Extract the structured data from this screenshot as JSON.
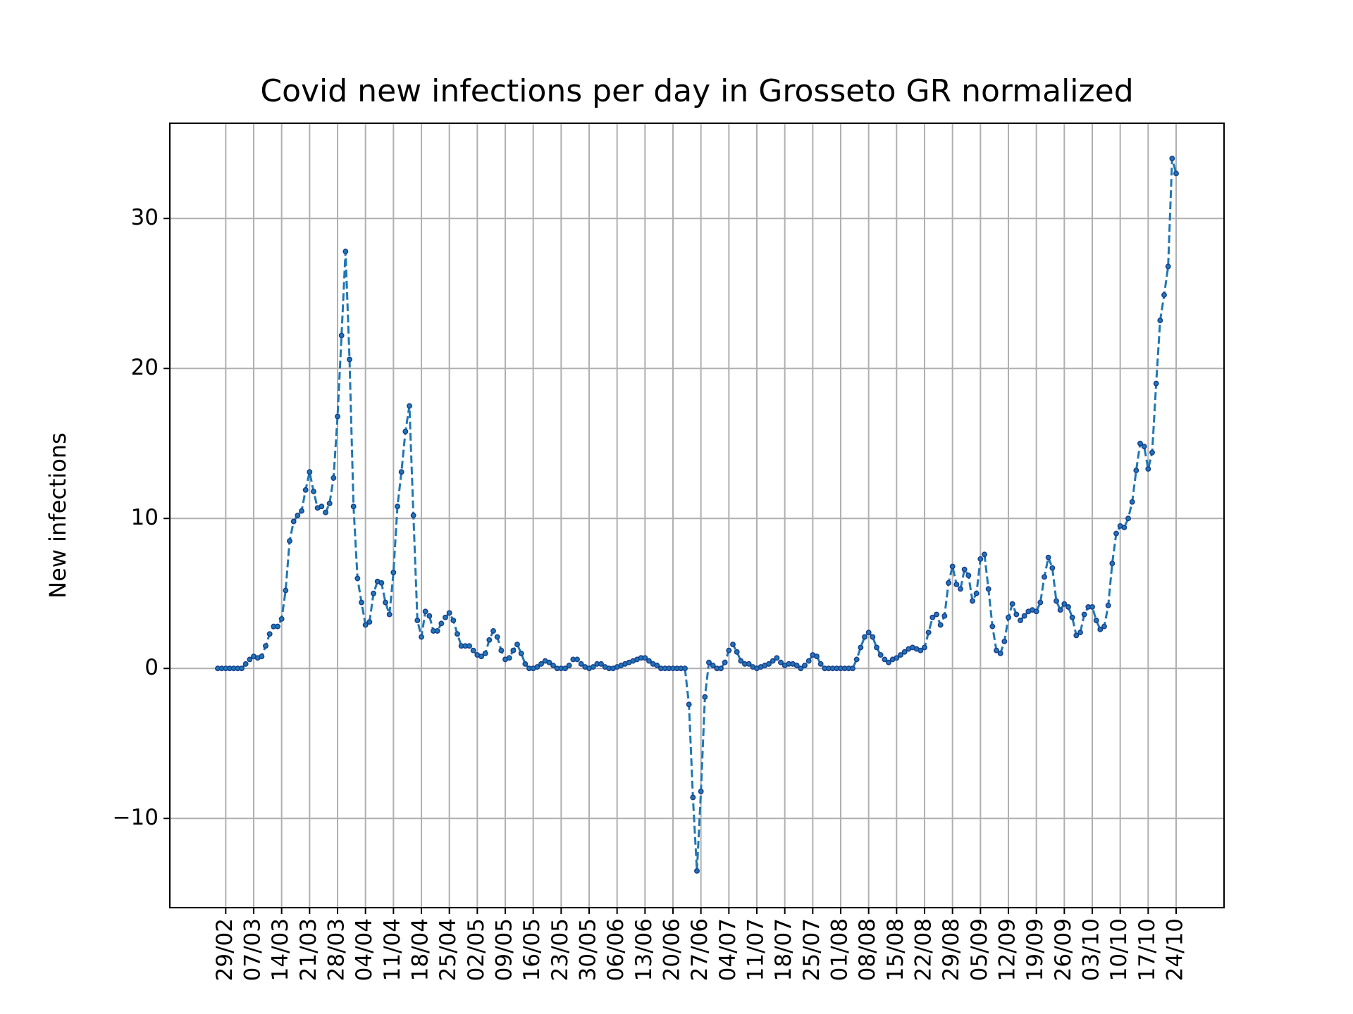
{
  "chart_data": {
    "type": "line",
    "title": "Covid new infections per day in Grosseto GR normalized",
    "ylabel": "New infections",
    "categories": [
      null,
      null,
      "29/02",
      null,
      null,
      null,
      null,
      null,
      null,
      "07/03",
      null,
      null,
      null,
      null,
      null,
      null,
      "14/03",
      null,
      null,
      null,
      null,
      null,
      null,
      "21/03",
      null,
      null,
      null,
      null,
      null,
      null,
      "28/03",
      null,
      null,
      null,
      null,
      null,
      null,
      "04/04",
      null,
      null,
      null,
      null,
      null,
      null,
      "11/04",
      null,
      null,
      null,
      null,
      null,
      null,
      "18/04",
      null,
      null,
      null,
      null,
      null,
      null,
      "25/04",
      null,
      null,
      null,
      null,
      null,
      null,
      "02/05",
      null,
      null,
      null,
      null,
      null,
      null,
      "09/05",
      null,
      null,
      null,
      null,
      null,
      null,
      "16/05",
      null,
      null,
      null,
      null,
      null,
      null,
      "23/05",
      null,
      null,
      null,
      null,
      null,
      null,
      "30/05",
      null,
      null,
      null,
      null,
      null,
      null,
      "06/06",
      null,
      null,
      null,
      null,
      null,
      null,
      "13/06",
      null,
      null,
      null,
      null,
      null,
      null,
      "20/06",
      null,
      null,
      null,
      null,
      null,
      null,
      "27/06",
      null,
      null,
      null,
      null,
      null,
      null,
      "04/07",
      null,
      null,
      null,
      null,
      null,
      null,
      "11/07",
      null,
      null,
      null,
      null,
      null,
      null,
      "18/07",
      null,
      null,
      null,
      null,
      null,
      null,
      "25/07",
      null,
      null,
      null,
      null,
      null,
      null,
      "01/08",
      null,
      null,
      null,
      null,
      null,
      null,
      "08/08",
      null,
      null,
      null,
      null,
      null,
      null,
      "15/08",
      null,
      null,
      null,
      null,
      null,
      null,
      "22/08",
      null,
      null,
      null,
      null,
      null,
      null,
      "29/08",
      null,
      null,
      null,
      null,
      null,
      null,
      "05/09",
      null,
      null,
      null,
      null,
      null,
      null,
      "12/09",
      null,
      null,
      null,
      null,
      null,
      null,
      "19/09",
      null,
      null,
      null,
      null,
      null,
      null,
      "26/09",
      null,
      null,
      null,
      null,
      null,
      null,
      "03/10",
      null,
      null,
      null,
      null,
      null,
      null,
      "10/10",
      null,
      null,
      null,
      null,
      null,
      null,
      "17/10",
      null,
      null,
      null,
      null,
      null,
      null,
      "24/10"
    ],
    "values": [
      0,
      0,
      0,
      0,
      0,
      0,
      0,
      0.3,
      0.6,
      0.8,
      0.7,
      0.8,
      1.5,
      2.3,
      2.8,
      2.8,
      3.3,
      5.2,
      8.5,
      9.8,
      10.2,
      10.5,
      11.9,
      13.1,
      11.8,
      10.7,
      10.8,
      10.4,
      11.0,
      12.7,
      16.8,
      22.2,
      27.8,
      20.6,
      10.8,
      6.0,
      4.4,
      2.9,
      3.1,
      5.0,
      5.8,
      5.7,
      4.4,
      3.6,
      6.4,
      10.8,
      13.1,
      15.8,
      17.5,
      10.2,
      3.2,
      2.1,
      3.8,
      3.5,
      2.5,
      2.5,
      3.0,
      3.4,
      3.7,
      3.2,
      2.3,
      1.5,
      1.5,
      1.5,
      1.2,
      0.9,
      0.8,
      1.0,
      1.9,
      2.5,
      2.1,
      1.2,
      0.6,
      0.7,
      1.2,
      1.6,
      1.0,
      0.3,
      0,
      0,
      0.1,
      0.3,
      0.5,
      0.4,
      0.2,
      0,
      0,
      0,
      0.2,
      0.6,
      0.6,
      0.3,
      0.1,
      0,
      0.1,
      0.3,
      0.3,
      0.1,
      0,
      0,
      0.1,
      0.2,
      0.3,
      0.4,
      0.5,
      0.6,
      0.7,
      0.7,
      0.5,
      0.3,
      0.2,
      0,
      0,
      0,
      0,
      0,
      0,
      0,
      -2.4,
      -8.6,
      -13.5,
      -8.2,
      -1.9,
      0.4,
      0.2,
      0,
      0,
      0.4,
      1.2,
      1.6,
      1.1,
      0.5,
      0.3,
      0.3,
      0.1,
      0,
      0.1,
      0.2,
      0.3,
      0.5,
      0.7,
      0.4,
      0.2,
      0.3,
      0.3,
      0.2,
      0,
      0.2,
      0.5,
      0.9,
      0.8,
      0.3,
      0,
      0,
      0,
      0,
      0,
      0,
      0,
      0,
      0.6,
      1.4,
      2.1,
      2.4,
      2.1,
      1.4,
      0.9,
      0.6,
      0.4,
      0.6,
      0.7,
      0.9,
      1.1,
      1.3,
      1.4,
      1.3,
      1.2,
      1.4,
      2.4,
      3.4,
      3.6,
      2.9,
      3.5,
      5.7,
      6.8,
      5.6,
      5.3,
      6.6,
      6.2,
      4.5,
      5.0,
      7.3,
      7.6,
      5.3,
      2.8,
      1.2,
      1.0,
      1.8,
      3.4,
      4.3,
      3.6,
      3.2,
      3.5,
      3.8,
      3.9,
      3.8,
      4.4,
      6.1,
      7.4,
      6.7,
      4.5,
      3.9,
      4.3,
      4.1,
      3.4,
      2.2,
      2.4,
      3.6,
      4.1,
      4.1,
      3.2,
      2.6,
      2.8,
      4.2,
      7.0,
      9.0,
      9.5,
      9.4,
      10.0,
      11.1,
      13.2,
      15.0,
      14.8,
      13.3,
      14.4,
      19.0,
      23.2,
      24.9,
      26.8,
      34.0,
      33.0
    ],
    "color": "#1f77b4",
    "marker_color": "#1a3f8f",
    "linestyle": "dashed",
    "ylim": [
      -15.95,
      36.35
    ],
    "yticks": [
      {
        "value": -10,
        "label": "−10"
      },
      0,
      10,
      20,
      30
    ],
    "grid": true
  }
}
